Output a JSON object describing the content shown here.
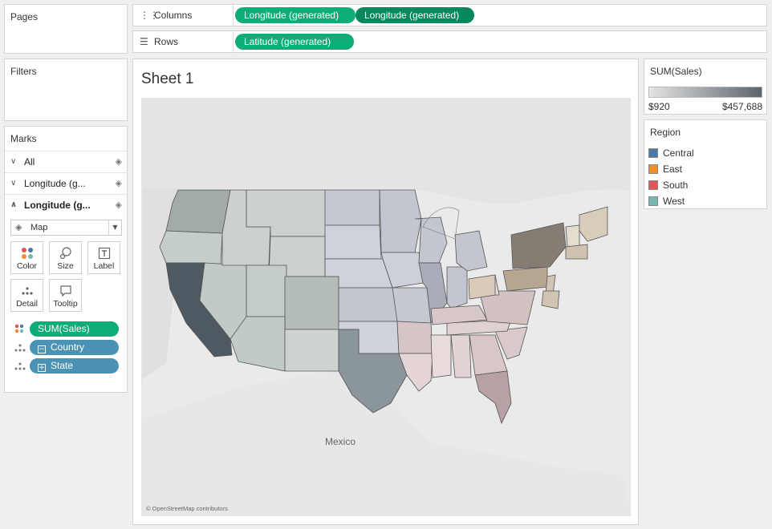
{
  "pages": {
    "title": "Pages"
  },
  "filters": {
    "title": "Filters"
  },
  "columns": {
    "label": "Columns",
    "icon": "columns-icon",
    "pills": [
      "Longitude (generated)",
      "Longitude (generated)"
    ]
  },
  "rows": {
    "label": "Rows",
    "icon": "rows-icon",
    "pills": [
      "Latitude (generated)"
    ]
  },
  "marks": {
    "title": "Marks",
    "cards": [
      "All",
      "Longitude (g...",
      "Longitude (g..."
    ],
    "mark_type": "Map",
    "buttons": {
      "color": "Color",
      "size": "Size",
      "label": "Label",
      "detail": "Detail",
      "tooltip": "Tooltip"
    },
    "fields": [
      "SUM(Sales)",
      "Country",
      "State"
    ]
  },
  "sheet": {
    "title": "Sheet 1",
    "map_label_mexico": "Mexico",
    "attribution": "© OpenStreetMap contributors"
  },
  "sales_legend": {
    "title": "SUM(Sales)",
    "min": "$920",
    "max": "$457,688",
    "min_color": "#e4e4e4",
    "max_color": "#5c646c"
  },
  "region_legend": {
    "title": "Region",
    "items": [
      {
        "label": "Central",
        "color": "#4e79a7"
      },
      {
        "label": "East",
        "color": "#f28e2b"
      },
      {
        "label": "South",
        "color": "#e15759"
      },
      {
        "label": "West",
        "color": "#76b7b2"
      }
    ]
  }
}
